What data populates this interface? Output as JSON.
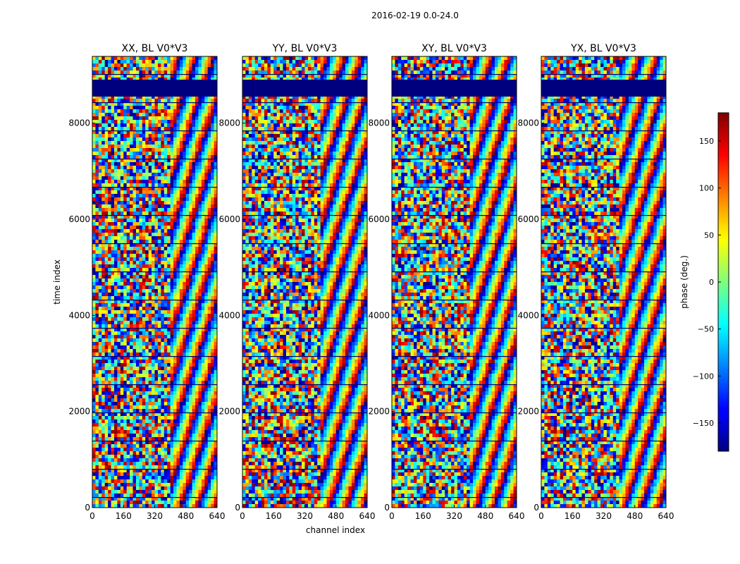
{
  "figure": {
    "suptitle": "2016-02-19 0.0-24.0"
  },
  "chart_data": {
    "type": "heatmap",
    "xlabel": "channel index",
    "ylabel": "time index",
    "xlim": [
      0,
      640
    ],
    "ylim": [
      0,
      9390
    ],
    "x_ticks": [
      0,
      160,
      320,
      480,
      640
    ],
    "y_ticks": [
      0,
      2000,
      4000,
      6000,
      8000
    ],
    "panels": [
      {
        "title": "XX, BL V0*V3",
        "polarization": "XX",
        "baseline": "V0*V3"
      },
      {
        "title": "YY, BL V0*V3",
        "polarization": "YY",
        "baseline": "V0*V3"
      },
      {
        "title": "XY, BL V0*V3",
        "polarization": "XY",
        "baseline": "V0*V3"
      },
      {
        "title": "YX, BL V0*V3",
        "polarization": "YX",
        "baseline": "V0*V3"
      }
    ],
    "colorbar": {
      "label": "phase (deg.)",
      "range": [
        -180,
        180
      ],
      "ticks": [
        150,
        100,
        50,
        0,
        -50,
        -100,
        -150
      ],
      "colormap": "jet"
    },
    "notes": "Phase vs channel index and time index; mostly noise with fringe patterns at channels >= 400."
  }
}
